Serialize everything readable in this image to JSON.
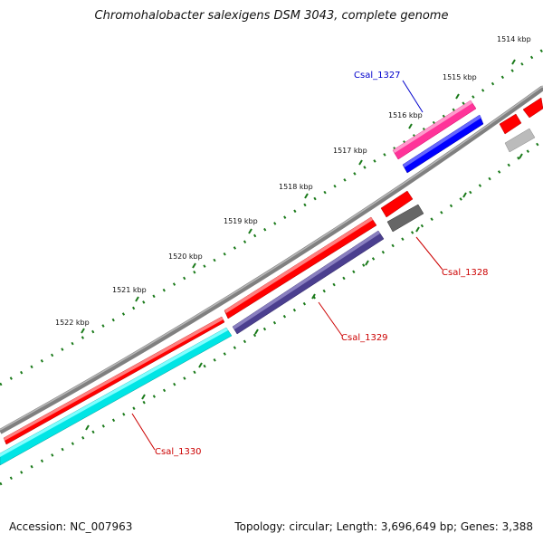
{
  "title": "Chromohalobacter salexigens DSM 3043, complete genome",
  "footer": {
    "accession": "Accession: NC_007963",
    "summary": "Topology: circular; Length: 3,696,649 bp; Genes: 3,388"
  },
  "ticks": [
    "1514 kbp",
    "1515 kbp",
    "1516 kbp",
    "1517 kbp",
    "1518 kbp",
    "1519 kbp",
    "1520 kbp",
    "1521 kbp",
    "1522 kbp"
  ],
  "gene_labels": [
    {
      "id": "csal-1327",
      "text": "Csal_1327",
      "color": "#0000cc"
    },
    {
      "id": "csal-1328",
      "text": "Csal_1328",
      "color": "#cc0000"
    },
    {
      "id": "csal-1329",
      "text": "Csal_1329",
      "color": "#cc0000"
    },
    {
      "id": "csal-1330",
      "text": "Csal_1330",
      "color": "#cc0000"
    }
  ],
  "colors": {
    "backbone": "#808080",
    "cds": "#ff0000",
    "gene_1327": "#0000ff",
    "gene_1327_feature": "#ff3399",
    "gene_1328": "#666666",
    "gene_1329": "#4b3f8f",
    "gene_1330": "#00e5e5",
    "tick": "#1a7a1a"
  }
}
